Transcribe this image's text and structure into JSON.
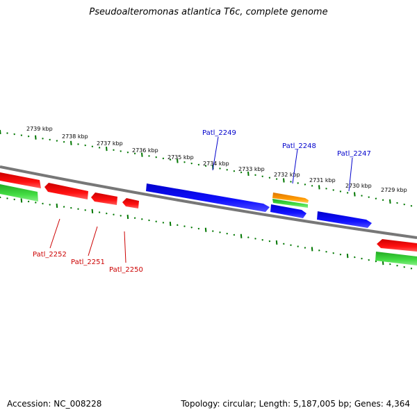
{
  "title": "Pseudoalteromonas atlantica T6c, complete genome",
  "footer": {
    "accession": "Accession: NC_008228",
    "summary": "Topology: circular; Length: 5,187,005 bp; Genes: 4,364"
  },
  "colors": {
    "forward_cds": "#0000ee",
    "reverse_cds": "#dd0000",
    "gene_forward": "#ff9900",
    "gene_reverse": "#22aa22",
    "backbone": "#888888",
    "ticks": "#007700"
  },
  "scale_labels": [
    "2739 kbp",
    "2738 kbp",
    "2737 kbp",
    "2736 kbp",
    "2735 kbp",
    "2734 kbp",
    "2733 kbp",
    "2732 kbp",
    "2731 kbp",
    "2730 kbp",
    "2729 kbp"
  ],
  "gene_labels": {
    "forward": [
      "Patl_2249",
      "Patl_2248",
      "Patl_2247"
    ],
    "reverse": [
      "Patl_2252",
      "Patl_2251",
      "Patl_2250"
    ]
  }
}
